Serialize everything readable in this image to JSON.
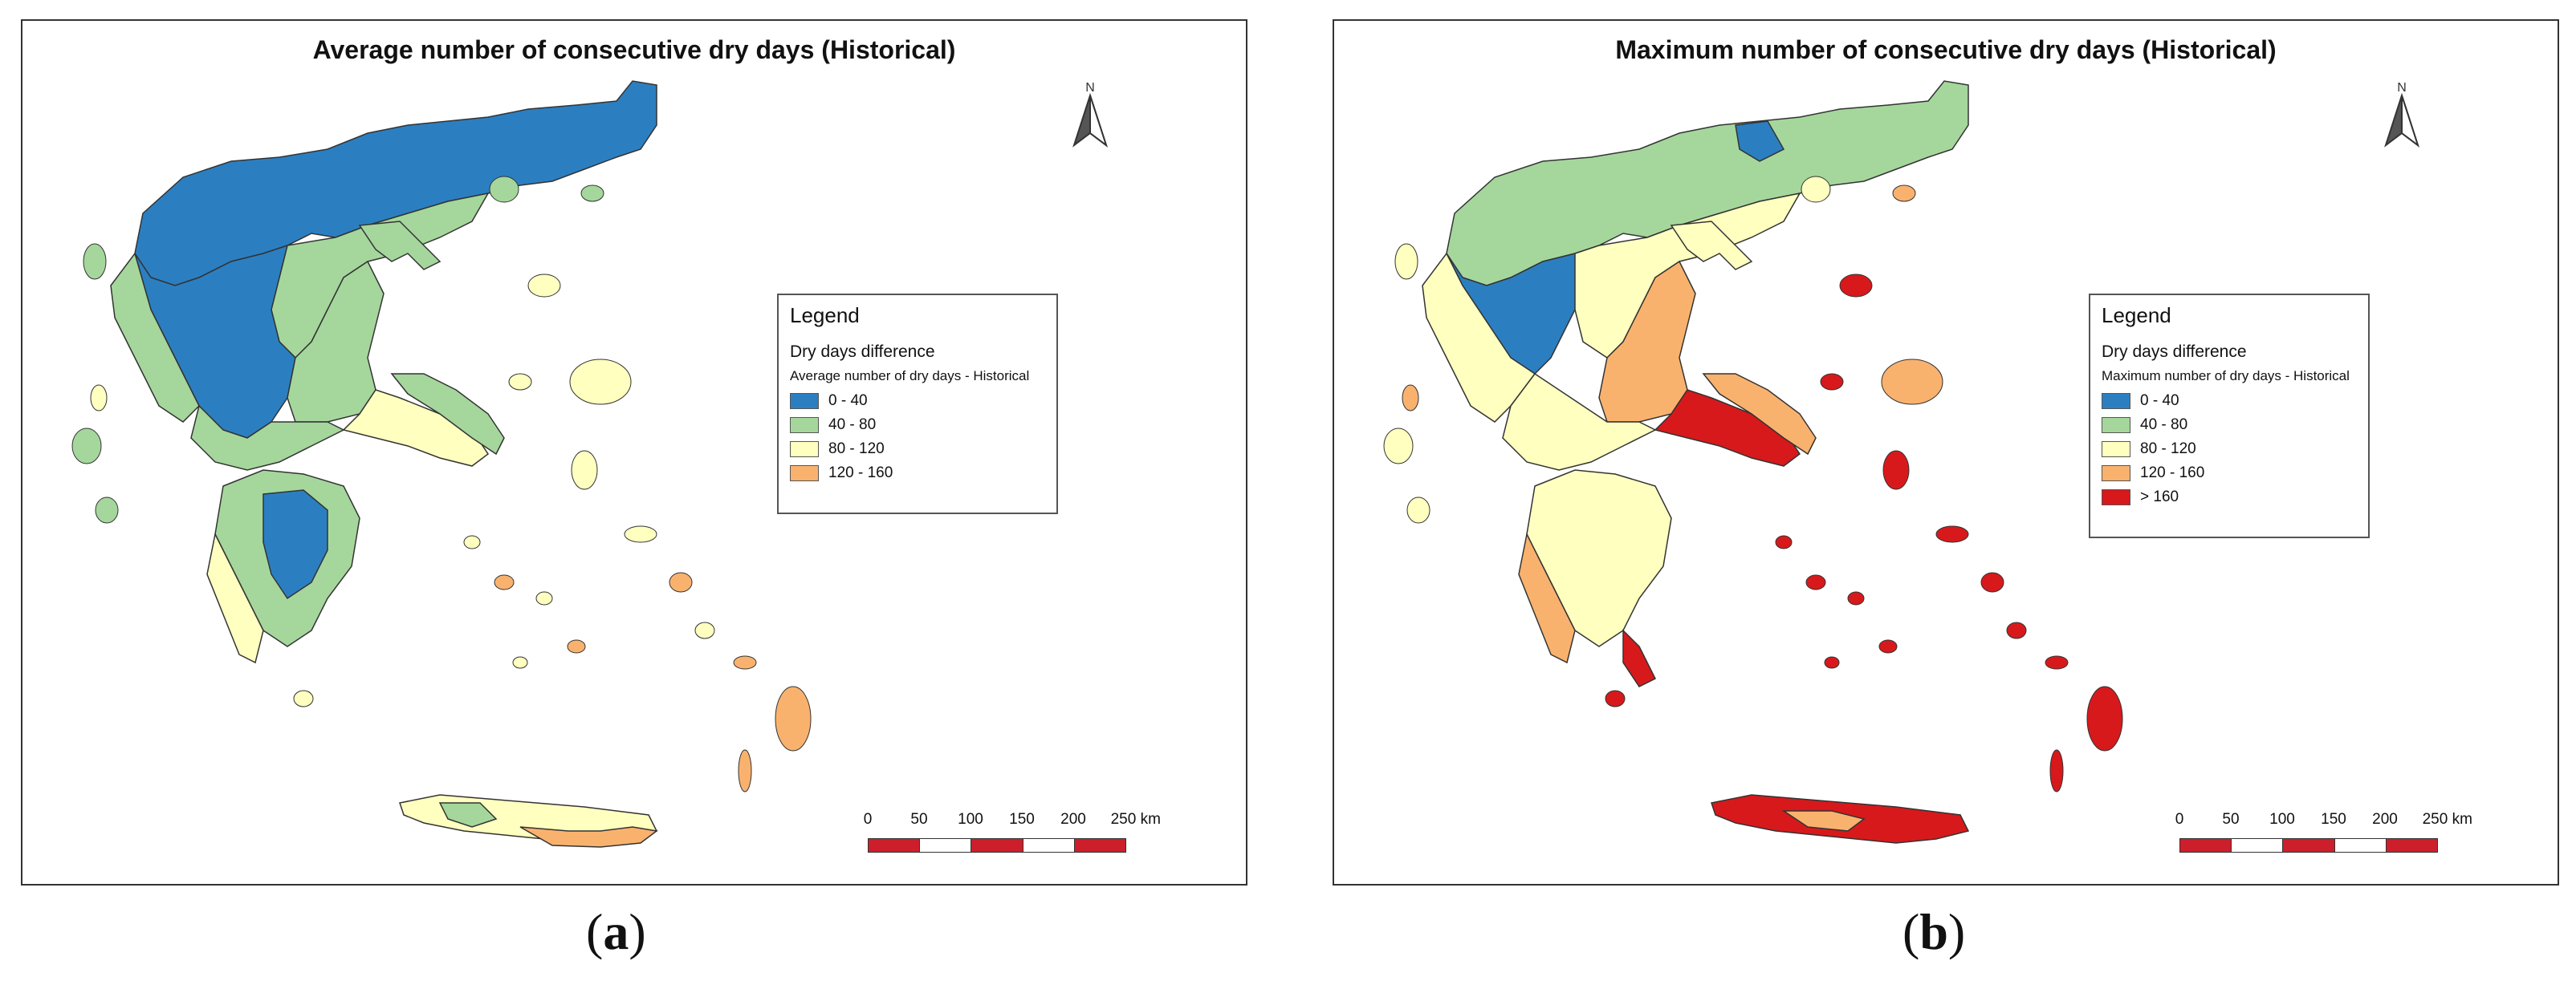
{
  "panel_a": {
    "title": "Average number of consecutive dry days (Historical)",
    "north_label": "N",
    "legend": {
      "title": "Legend",
      "subtitle": "Dry days difference",
      "layer": "Average number of dry days - Historical",
      "items": [
        {
          "label": "0 - 40",
          "color": "#2b7fc1"
        },
        {
          "label": "40 - 80",
          "color": "#a5d79c"
        },
        {
          "label": "80 - 120",
          "color": "#ffffc0"
        },
        {
          "label": "120 - 160",
          "color": "#f9b26e"
        }
      ]
    },
    "scale": {
      "ticks": [
        "0",
        "50",
        "100",
        "150",
        "200",
        "250 km"
      ]
    },
    "caption_letter": "a"
  },
  "panel_b": {
    "title": "Maximum number of consecutive dry days (Historical)",
    "north_label": "N",
    "legend": {
      "title": "Legend",
      "subtitle": "Dry days difference",
      "layer": "Maximum number of dry days - Historical",
      "items": [
        {
          "label": "0 - 40",
          "color": "#2b7fc1"
        },
        {
          "label": "40 - 80",
          "color": "#a5d79c"
        },
        {
          "label": "80 - 120",
          "color": "#ffffc0"
        },
        {
          "label": "120 - 160",
          "color": "#f9b26e"
        },
        {
          "label": "> 160",
          "color": "#d7191c"
        }
      ]
    },
    "scale": {
      "ticks": [
        "0",
        "50",
        "100",
        "150",
        "200",
        "250 km"
      ]
    },
    "caption_letter": "b"
  },
  "colors": {
    "class_0_40": "#2b7fc1",
    "class_40_80": "#a5d79c",
    "class_80_120": "#ffffc0",
    "class_120_160": "#f9b26e",
    "class_gt_160": "#d7191c",
    "scale_red": "#cc1f2b",
    "scale_white": "#ffffff"
  }
}
